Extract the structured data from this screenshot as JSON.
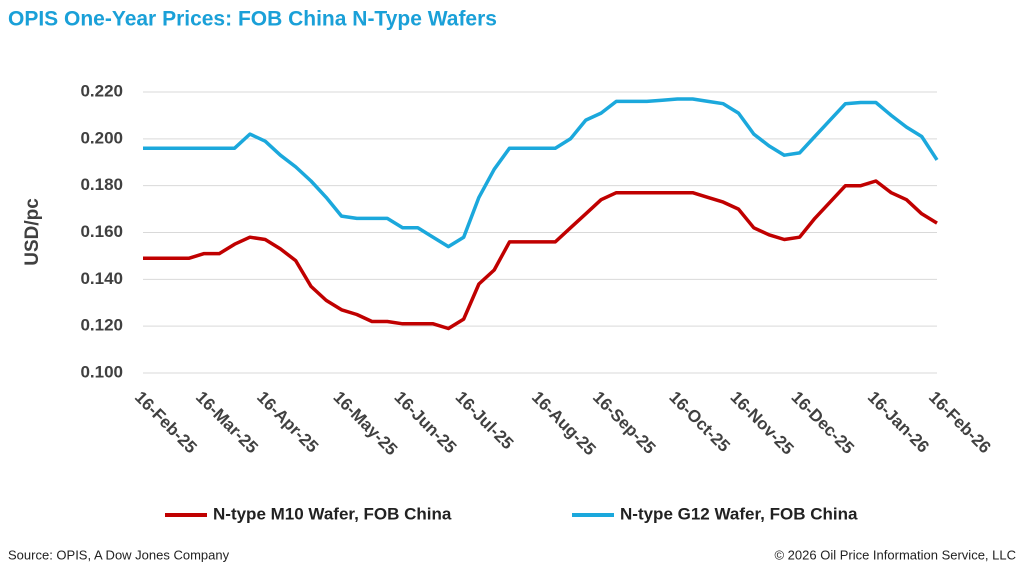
{
  "chart_data": {
    "type": "line",
    "title": "OPIS One-Year Prices: FOB China N-Type Wafers",
    "y_label": "USD/pc",
    "categories": [
      "16-Feb-25",
      null,
      null,
      null,
      "16-Mar-25",
      null,
      null,
      null,
      "16-Apr-25",
      null,
      null,
      null,
      null,
      "16-May-25",
      null,
      null,
      null,
      "16-Jun-25",
      null,
      null,
      null,
      "16-Jul-25",
      null,
      null,
      null,
      null,
      "16-Aug-25",
      null,
      null,
      null,
      "16-Sep-25",
      null,
      null,
      null,
      null,
      "16-Oct-25",
      null,
      null,
      null,
      "16-Nov-25",
      null,
      null,
      null,
      "16-Dec-25",
      null,
      null,
      null,
      null,
      "16-Jan-26",
      null,
      null,
      null,
      "16-Feb-26"
    ],
    "series": [
      {
        "name": "N-type M10 Wafer, FOB China",
        "color": "#c00000",
        "values": [
          0.149,
          0.149,
          0.149,
          0.149,
          0.151,
          0.151,
          0.155,
          0.158,
          0.157,
          0.153,
          0.148,
          0.137,
          0.131,
          0.127,
          0.125,
          0.122,
          0.122,
          0.121,
          0.121,
          0.121,
          0.119,
          0.123,
          0.138,
          0.144,
          0.156,
          0.156,
          0.156,
          0.156,
          0.162,
          0.168,
          0.174,
          0.177,
          0.177,
          0.177,
          0.177,
          0.177,
          0.177,
          0.175,
          0.173,
          0.17,
          0.162,
          0.159,
          0.157,
          0.158,
          0.166,
          0.173,
          0.18,
          0.18,
          0.182,
          0.177,
          0.174,
          0.168,
          0.164
        ]
      },
      {
        "name": "N-type G12 Wafer, FOB China",
        "color": "#1ba8dc",
        "values": [
          0.196,
          0.196,
          0.196,
          0.196,
          0.196,
          0.196,
          0.196,
          0.202,
          0.199,
          0.193,
          0.188,
          0.182,
          0.175,
          0.167,
          0.166,
          0.166,
          0.166,
          0.162,
          0.162,
          0.158,
          0.154,
          0.158,
          0.175,
          0.187,
          0.196,
          0.196,
          0.196,
          0.196,
          0.2,
          0.208,
          0.211,
          0.216,
          0.216,
          0.216,
          0.2165,
          0.217,
          0.217,
          0.216,
          0.215,
          0.211,
          0.202,
          0.197,
          0.193,
          0.194,
          0.201,
          0.208,
          0.215,
          0.2155,
          0.2155,
          0.21,
          0.205,
          0.201,
          0.191
        ]
      }
    ],
    "ylim": [
      0.1,
      0.22
    ],
    "yticks": [
      {
        "value": 0.1,
        "label": "0.100"
      },
      {
        "value": 0.12,
        "label": "0.120"
      },
      {
        "value": 0.14,
        "label": "0.140"
      },
      {
        "value": 0.16,
        "label": "0.160"
      },
      {
        "value": 0.18,
        "label": "0.180"
      },
      {
        "value": 0.2,
        "label": "0.200"
      },
      {
        "value": 0.22,
        "label": "0.220"
      }
    ],
    "grid": true,
    "legend": "bottom",
    "source": "Source: OPIS, A Dow Jones Company",
    "copyright": "© 2026 Oil Price Information Service, LLC"
  }
}
